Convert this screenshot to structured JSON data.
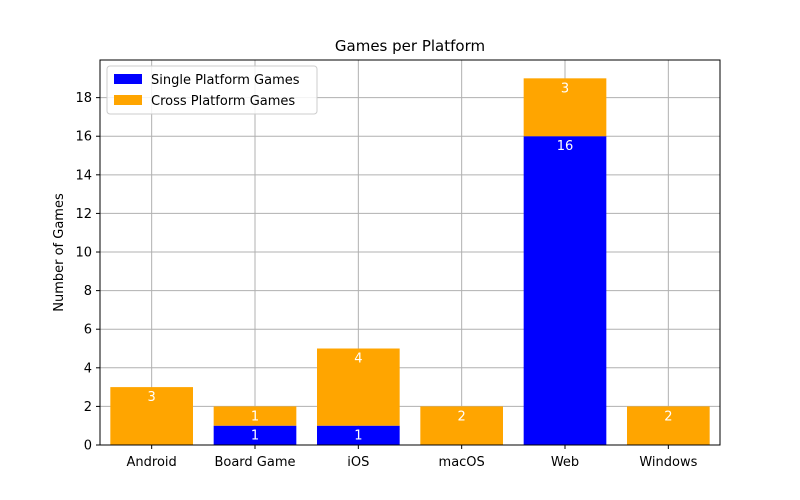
{
  "chart_data": {
    "type": "bar",
    "stacked": true,
    "title": "Games per Platform",
    "xlabel": "",
    "ylabel": "Number of Games",
    "categories": [
      "Android",
      "Board Game",
      "iOS",
      "macOS",
      "Web",
      "Windows"
    ],
    "series": [
      {
        "name": "Single Platform Games",
        "color": "#0000ff",
        "values": [
          0,
          1,
          1,
          0,
          16,
          0
        ]
      },
      {
        "name": "Cross Platform Games",
        "color": "#ffa500",
        "values": [
          3,
          1,
          4,
          2,
          3,
          2
        ]
      }
    ],
    "ylim": [
      0,
      19.95
    ],
    "yticks": [
      0,
      2,
      4,
      6,
      8,
      10,
      12,
      14,
      16,
      18
    ],
    "grid": true,
    "legend_position": "top-left"
  }
}
